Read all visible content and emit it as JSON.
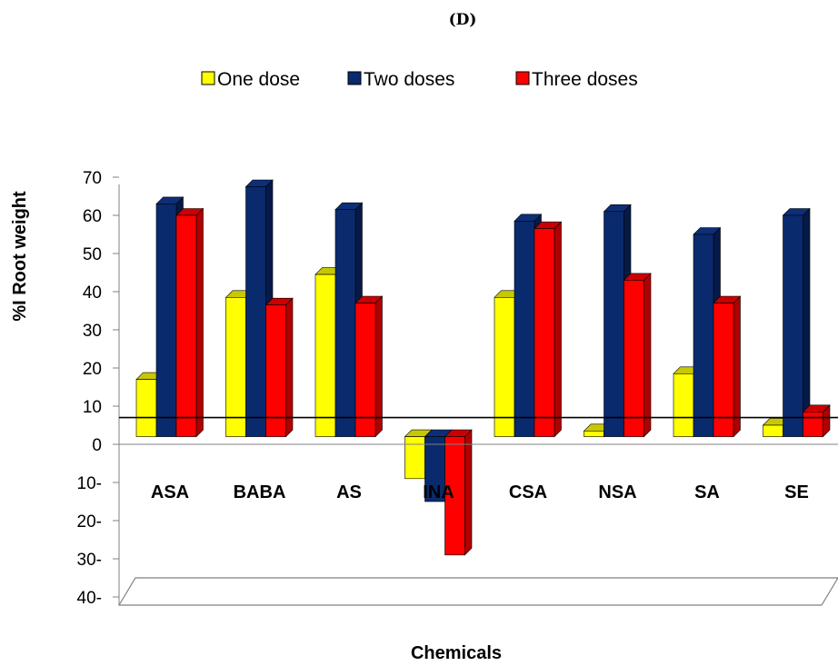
{
  "chart_data": {
    "type": "bar",
    "title": "(D)",
    "xlabel": "Chemicals",
    "ylabel": "%I Root weight",
    "categories": [
      "ASA",
      "BABA",
      "AS",
      "INA",
      "CSA",
      "NSA",
      "SA",
      "SE"
    ],
    "series": [
      {
        "name": "One dose",
        "color": "#ffff00",
        "top_color": "#c8c800",
        "side_color": "#b5b500",
        "values": [
          17,
          38.5,
          44.5,
          -9,
          38.5,
          3.5,
          18.5,
          5
        ]
      },
      {
        "name": "Two doses",
        "color": "#0a2a6e",
        "top_color": "#0d2e78",
        "side_color": "#061a48",
        "values": [
          63,
          67.5,
          61.5,
          -15,
          58.5,
          61,
          55,
          60
        ]
      },
      {
        "name": "Three doses",
        "color": "#ff0000",
        "top_color": "#cc0000",
        "side_color": "#b00000",
        "values": [
          60,
          36.5,
          37,
          -29,
          56.5,
          43,
          37,
          8.5
        ]
      }
    ],
    "ylim": [
      -40,
      70
    ],
    "yticks": [
      "70",
      "60",
      "50",
      "40",
      "30",
      "20",
      "10",
      "0",
      "10-",
      "20-",
      "30-",
      "40-"
    ],
    "reference_line_value": 7,
    "legend_position": "top"
  }
}
